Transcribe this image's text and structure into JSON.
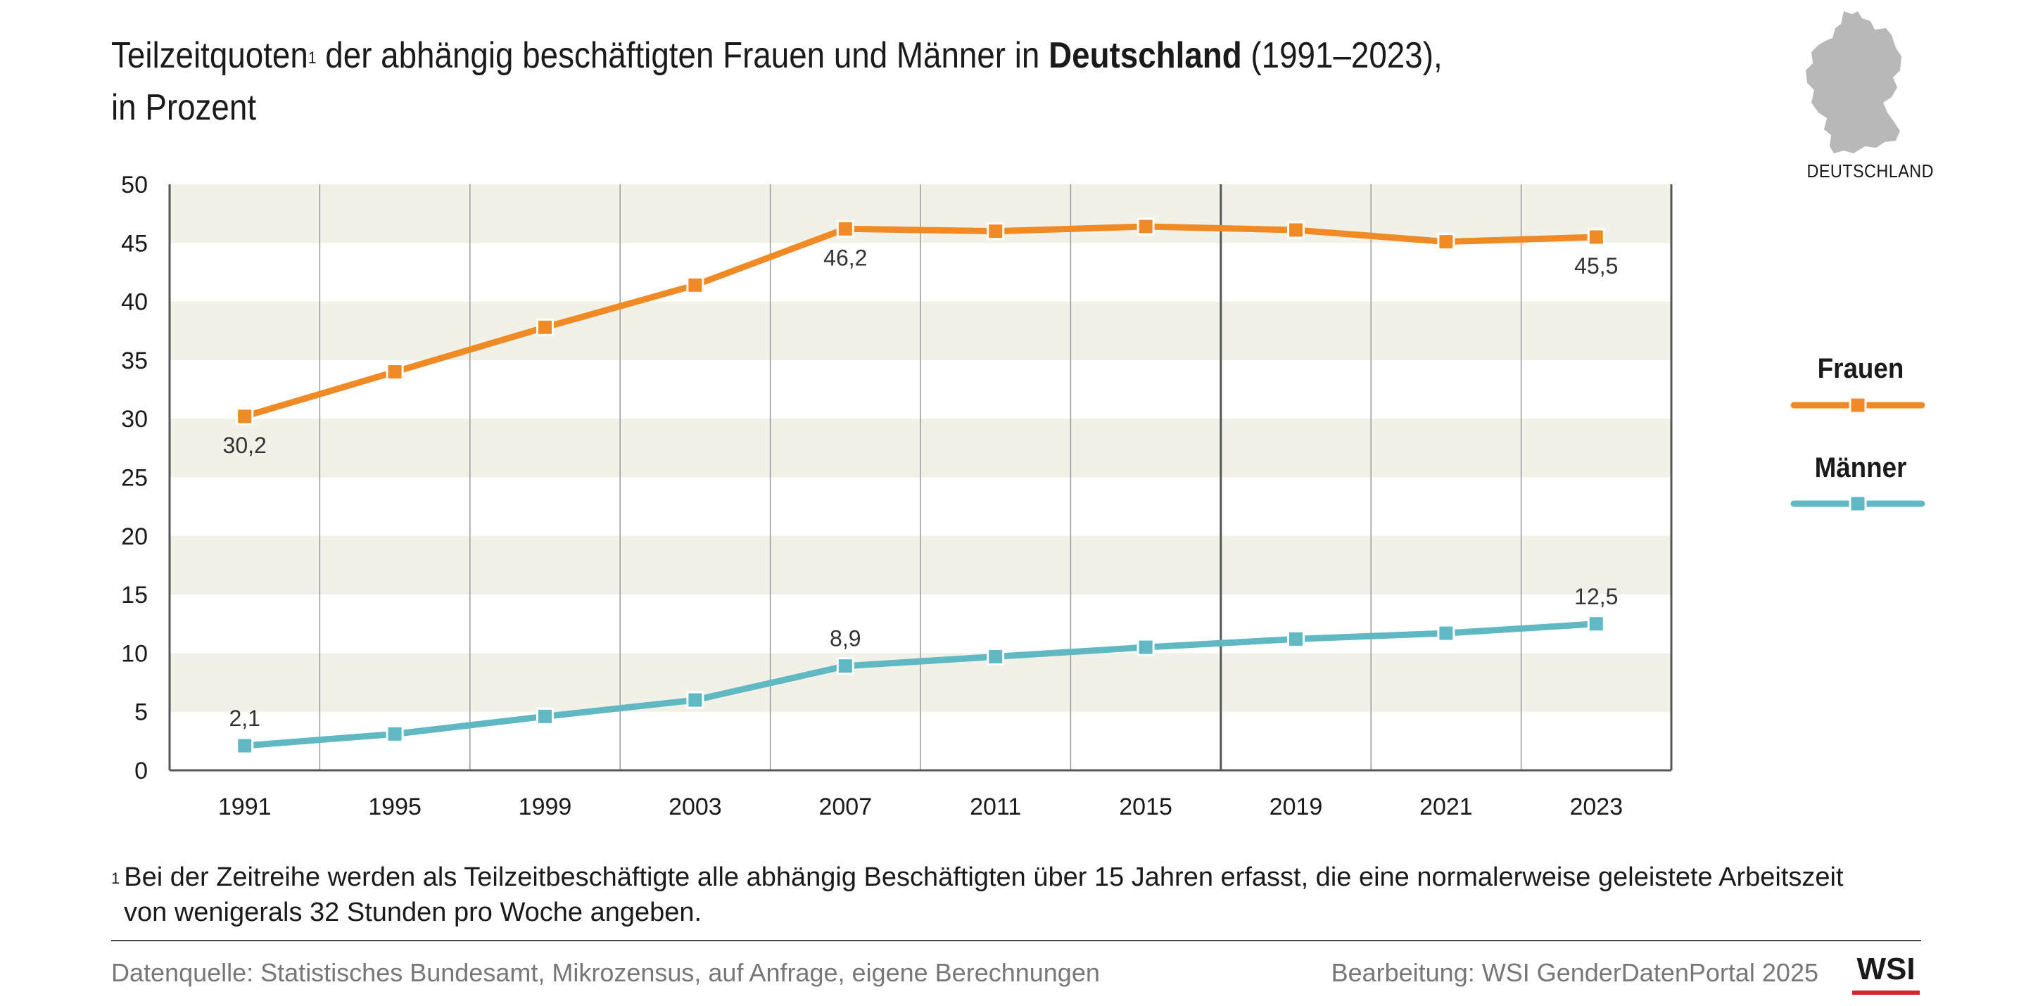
{
  "header": {
    "title_part1": "Teilzeitquoten",
    "title_sup": "1",
    "title_part2": " der abhängig beschäftigten Frauen und Männer in ",
    "title_bold": "Deutschland",
    "title_part3": " (1991–2023),",
    "title_line2": "in Prozent"
  },
  "map": {
    "label": "DEUTSCHLAND",
    "icon": "germany-map-icon",
    "color": "#b8b8b8"
  },
  "legend": {
    "items": [
      {
        "label": "Frauen",
        "color": "#f08a24"
      },
      {
        "label": "Männer",
        "color": "#5fb8c2"
      }
    ]
  },
  "chart_data": {
    "type": "line",
    "categories": [
      "1991",
      "1995",
      "1999",
      "2003",
      "2007",
      "2011",
      "2015",
      "2019",
      "2021",
      "2023"
    ],
    "series": [
      {
        "name": "Frauen",
        "color": "#f08a24",
        "values": [
          30.2,
          34.0,
          37.8,
          41.4,
          46.2,
          46.0,
          46.4,
          46.1,
          45.1,
          45.5
        ]
      },
      {
        "name": "Männer",
        "color": "#5fb8c2",
        "values": [
          2.1,
          3.1,
          4.6,
          6.0,
          8.9,
          9.7,
          10.5,
          11.2,
          11.7,
          12.5
        ]
      }
    ],
    "data_labels": [
      {
        "series": 0,
        "index": 0,
        "text": "30,2",
        "position": "below"
      },
      {
        "series": 0,
        "index": 4,
        "text": "46,2",
        "position": "below"
      },
      {
        "series": 0,
        "index": 9,
        "text": "45,5",
        "position": "below"
      },
      {
        "series": 1,
        "index": 0,
        "text": "2,1",
        "position": "above"
      },
      {
        "series": 1,
        "index": 4,
        "text": "8,9",
        "position": "above"
      },
      {
        "series": 1,
        "index": 9,
        "text": "12,5",
        "position": "above"
      }
    ],
    "yticks": [
      "0",
      "5",
      "10",
      "15",
      "20",
      "25",
      "30",
      "35",
      "40",
      "45",
      "50"
    ],
    "ylim": [
      0,
      50
    ],
    "title": "",
    "xlabel": "",
    "ylabel": "",
    "grid": true,
    "band_color": "#f1f1e8",
    "legend_position": "right"
  },
  "footnote": {
    "marker": "1",
    "line1": "Bei der Zeitreihe werden als Teilzeitbeschäftigte alle abhängig Beschäftigten über 15 Jahren erfasst, die eine normalerweise geleistete Arbeitszeit",
    "line2": "von wenigerals 32 Stunden pro Woche angeben."
  },
  "footer": {
    "source": "Datenquelle: Statistisches Bundesamt, Mikrozensus, auf Anfrage, eigene Berechnungen",
    "credit": "Bearbeitung: WSI GenderDatenPortal 2025",
    "logo_text": "WSI",
    "logo_accent": "#d7212b"
  }
}
